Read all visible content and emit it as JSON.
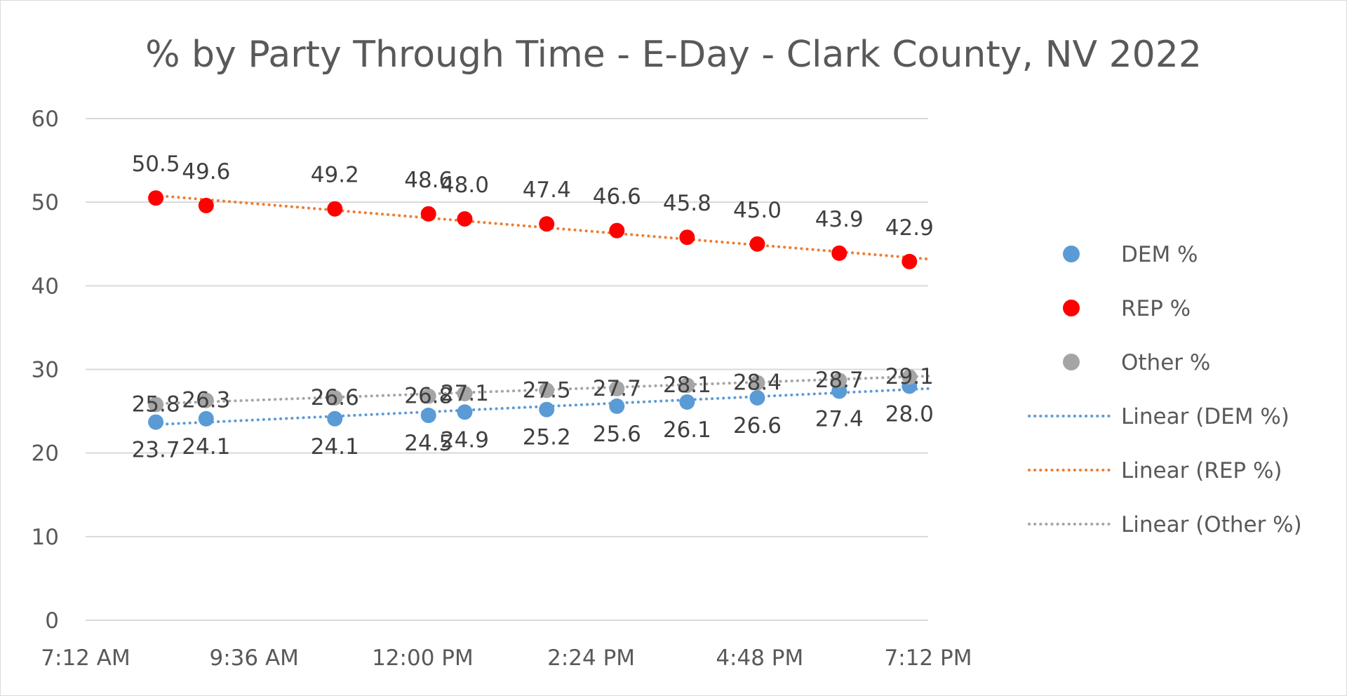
{
  "chart_data": {
    "type": "scatter",
    "title": "% by Party Through Time - E-Day - Clark County, NV 2022",
    "xlabel": "",
    "ylabel": "",
    "x_ticks": [
      "7:12 AM",
      "9:36 AM",
      "12:00 PM",
      "2:24 PM",
      "4:48 PM",
      "7:12 PM"
    ],
    "xlim": [
      "7:12 AM",
      "7:12 PM"
    ],
    "ylim": [
      0,
      60
    ],
    "y_ticks": [
      0,
      10,
      20,
      30,
      40,
      50,
      60
    ],
    "grid": true,
    "legend_position": "right",
    "x": [
      "8:12 AM",
      "8:55 AM",
      "10:45 AM",
      "12:05 PM",
      "12:36 PM",
      "1:46 PM",
      "2:46 PM",
      "3:46 PM",
      "4:46 PM",
      "5:56 PM",
      "6:56 PM"
    ],
    "series": [
      {
        "name": "DEM %",
        "color": "#5b9bd5",
        "values": [
          23.7,
          24.1,
          24.1,
          24.5,
          24.9,
          25.2,
          25.6,
          26.1,
          26.6,
          27.4,
          28.0
        ],
        "labels": [
          "23.7",
          "24.1",
          "24.1",
          "24.5",
          "24.9",
          "25.2",
          "25.6",
          "26.1",
          "26.6",
          "27.4",
          "28.0"
        ]
      },
      {
        "name": "REP %",
        "color": "#ff0000",
        "values": [
          50.5,
          49.6,
          49.2,
          48.6,
          48.0,
          47.4,
          46.6,
          45.8,
          45.0,
          43.9,
          42.9
        ],
        "labels": [
          "50.5",
          "49.6",
          "49.2",
          "48.6",
          "48.0",
          "47.4",
          "46.6",
          "45.8",
          "45.0",
          "43.9",
          "42.9"
        ]
      },
      {
        "name": "Other %",
        "color": "#a5a5a5",
        "values": [
          25.8,
          26.3,
          26.6,
          26.8,
          27.1,
          27.5,
          27.7,
          28.1,
          28.4,
          28.7,
          29.1
        ],
        "labels": [
          "25.8",
          "26.3",
          "26.6",
          "26.8",
          "27.1",
          "27.5",
          "27.7",
          "28.1",
          "28.4",
          "28.7",
          "29.1"
        ]
      }
    ],
    "trendlines": [
      {
        "name": "Linear (DEM %)",
        "color": "#5b9bd5",
        "style": "dotted",
        "x": [
          "8:12 AM",
          "7:12 PM"
        ],
        "values": [
          23.4,
          27.7
        ]
      },
      {
        "name": "Linear (REP %)",
        "color": "#ed7d31",
        "style": "dotted",
        "x": [
          "8:12 AM",
          "7:12 PM"
        ],
        "values": [
          50.8,
          43.2
        ]
      },
      {
        "name": "Linear (Other %)",
        "color": "#a5a5a5",
        "style": "dotted",
        "x": [
          "8:12 AM",
          "7:12 PM"
        ],
        "values": [
          25.9,
          29.2
        ]
      }
    ]
  }
}
